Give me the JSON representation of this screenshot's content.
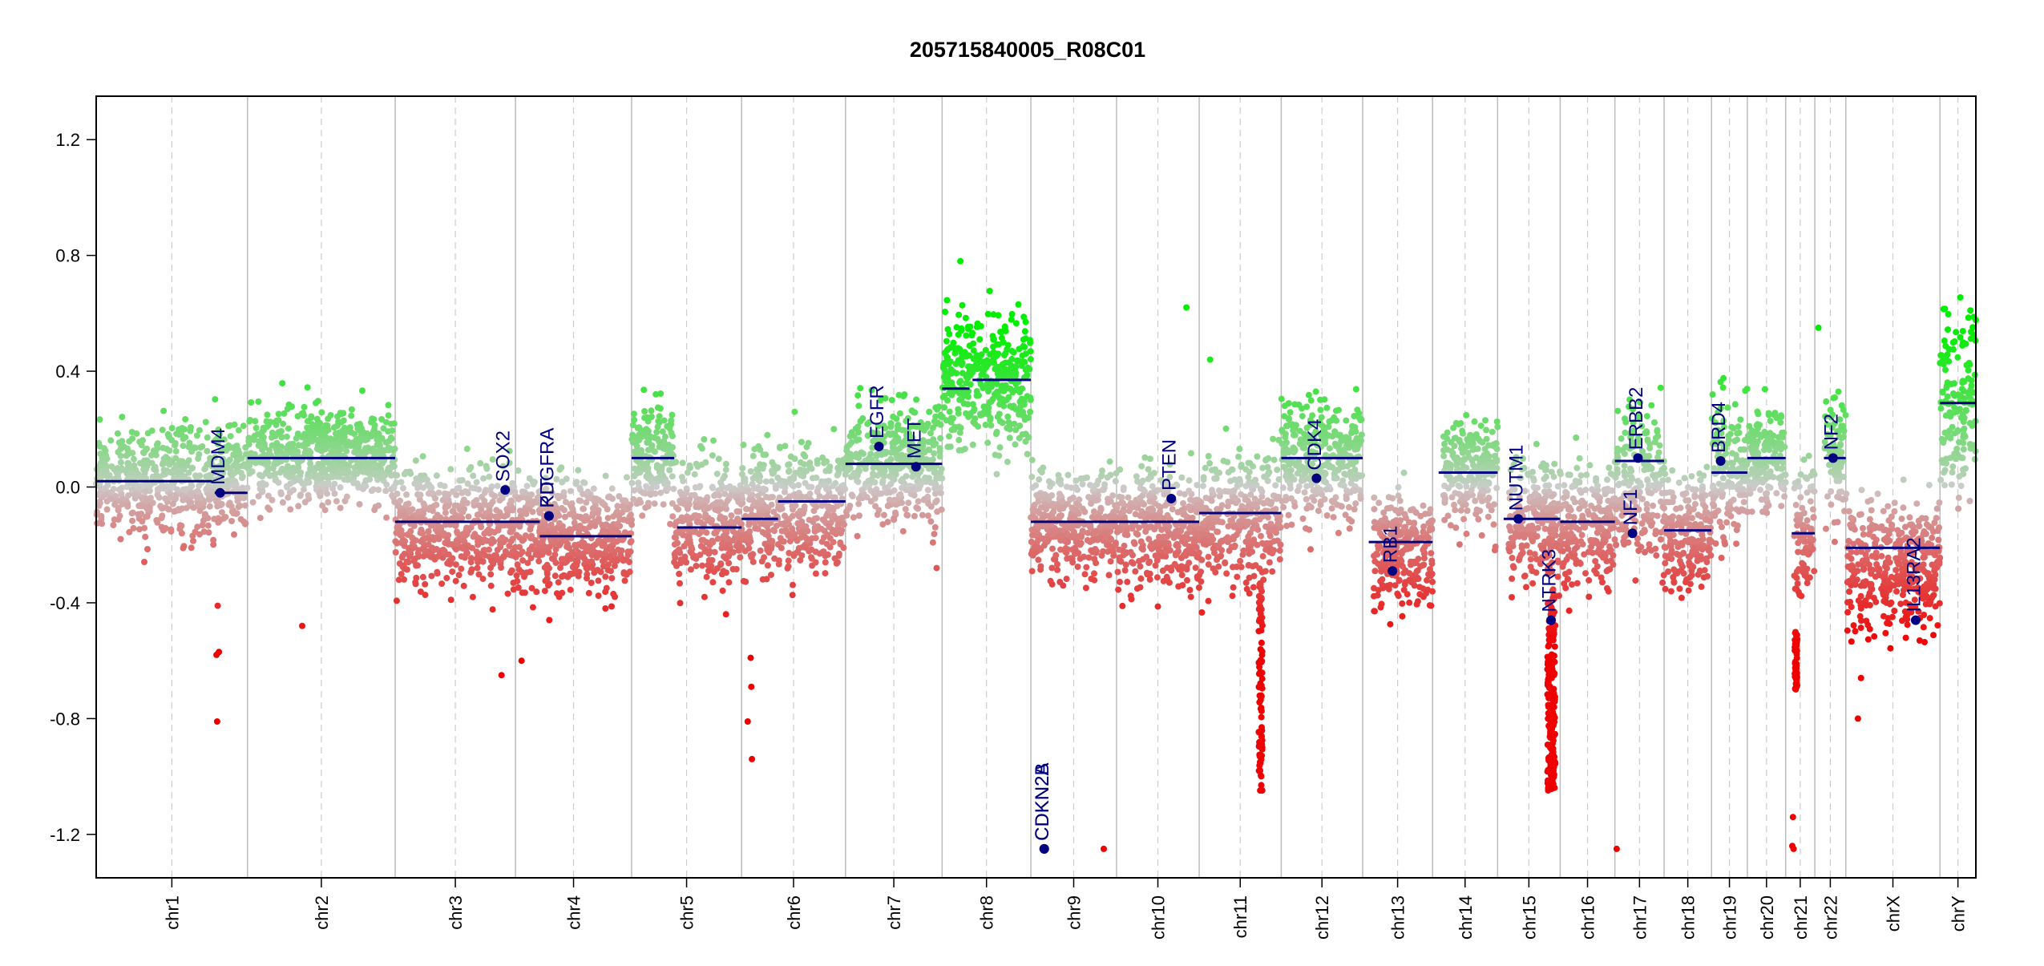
{
  "chart_data": {
    "type": "scatter",
    "title": "205715840005_R08C01",
    "xlabel": "",
    "ylabel": "",
    "ylim": [
      -1.35,
      1.35
    ],
    "y_ticks": [
      1.2,
      0.8,
      0.4,
      0.0,
      -0.4,
      -0.8,
      -1.2
    ],
    "y_tick_labels": [
      "1.2",
      "0.8",
      "0.4",
      "0.0",
      "-0.4",
      "-0.8",
      "-1.2"
    ],
    "grid": false,
    "colors": {
      "gain": "#00ee00",
      "loss": "#ee0000",
      "neutral": "#cccccc",
      "segment": "#000080",
      "gene": "#000080",
      "boundary": "#999999"
    },
    "chromosomes": [
      {
        "name": "chr1",
        "length": 249
      },
      {
        "name": "chr2",
        "length": 243
      },
      {
        "name": "chr3",
        "length": 198
      },
      {
        "name": "chr4",
        "length": 191
      },
      {
        "name": "chr5",
        "length": 181
      },
      {
        "name": "chr6",
        "length": 171
      },
      {
        "name": "chr7",
        "length": 159
      },
      {
        "name": "chr8",
        "length": 146
      },
      {
        "name": "chr9",
        "length": 141
      },
      {
        "name": "chr10",
        "length": 136
      },
      {
        "name": "chr11",
        "length": 135
      },
      {
        "name": "chr12",
        "length": 134
      },
      {
        "name": "chr13",
        "length": 115
      },
      {
        "name": "chr14",
        "length": 107
      },
      {
        "name": "chr15",
        "length": 103
      },
      {
        "name": "chr16",
        "length": 90
      },
      {
        "name": "chr17",
        "length": 81
      },
      {
        "name": "chr18",
        "length": 78
      },
      {
        "name": "chr19",
        "length": 59
      },
      {
        "name": "chr20",
        "length": 63
      },
      {
        "name": "chr21",
        "length": 48
      },
      {
        "name": "chr22",
        "length": 51
      },
      {
        "name": "chrX",
        "length": 155
      },
      {
        "name": "chrY",
        "length": 59
      }
    ],
    "segments": [
      {
        "chr": "chr1",
        "start": 0,
        "end": 190,
        "value": 0.02
      },
      {
        "chr": "chr1",
        "start": 195,
        "end": 249,
        "value": -0.02
      },
      {
        "chr": "chr2",
        "start": 0,
        "end": 243,
        "value": 0.1
      },
      {
        "chr": "chr3",
        "start": 0,
        "end": 198,
        "value": -0.12
      },
      {
        "chr": "chr4",
        "start": 0,
        "end": 40,
        "value": -0.12
      },
      {
        "chr": "chr4",
        "start": 40,
        "end": 191,
        "value": -0.17
      },
      {
        "chr": "chr5",
        "start": 0,
        "end": 70,
        "value": 0.1
      },
      {
        "chr": "chr5",
        "start": 75,
        "end": 181,
        "value": -0.14
      },
      {
        "chr": "chr6",
        "start": 0,
        "end": 60,
        "value": -0.11
      },
      {
        "chr": "chr6",
        "start": 60,
        "end": 171,
        "value": -0.05
      },
      {
        "chr": "chr7",
        "start": 0,
        "end": 159,
        "value": 0.08
      },
      {
        "chr": "chr8",
        "start": 0,
        "end": 45,
        "value": 0.34
      },
      {
        "chr": "chr8",
        "start": 50,
        "end": 146,
        "value": 0.37
      },
      {
        "chr": "chr9",
        "start": 0,
        "end": 141,
        "value": -0.12
      },
      {
        "chr": "chr10",
        "start": 0,
        "end": 136,
        "value": -0.12
      },
      {
        "chr": "chr11",
        "start": 0,
        "end": 135,
        "value": -0.09
      },
      {
        "chr": "chr12",
        "start": 0,
        "end": 134,
        "value": 0.1
      },
      {
        "chr": "chr13",
        "start": 10,
        "end": 115,
        "value": -0.19
      },
      {
        "chr": "chr14",
        "start": 10,
        "end": 107,
        "value": 0.05
      },
      {
        "chr": "chr15",
        "start": 10,
        "end": 103,
        "value": -0.11
      },
      {
        "chr": "chr16",
        "start": 0,
        "end": 90,
        "value": -0.12
      },
      {
        "chr": "chr17",
        "start": 0,
        "end": 81,
        "value": 0.09
      },
      {
        "chr": "chr18",
        "start": 0,
        "end": 78,
        "value": -0.15
      },
      {
        "chr": "chr19",
        "start": 0,
        "end": 59,
        "value": 0.05
      },
      {
        "chr": "chr20",
        "start": 0,
        "end": 63,
        "value": 0.1
      },
      {
        "chr": "chr21",
        "start": 10,
        "end": 48,
        "value": -0.16
      },
      {
        "chr": "chr22",
        "start": 15,
        "end": 51,
        "value": 0.1
      },
      {
        "chr": "chrX",
        "start": 0,
        "end": 155,
        "value": -0.21
      },
      {
        "chr": "chrY",
        "start": 0,
        "end": 59,
        "value": 0.29
      }
    ],
    "genes": [
      {
        "name": "MDM4",
        "chr": "chr1",
        "pos": 204,
        "value": -0.02
      },
      {
        "name": "SOX2",
        "chr": "chr3",
        "pos": 181,
        "value": -0.01
      },
      {
        "name": "PDGFRA",
        "chr": "chr4",
        "pos": 55,
        "value": -0.1
      },
      {
        "name": "KIT",
        "chr": "chr4",
        "pos": 55,
        "value": -0.1
      },
      {
        "name": "EGFR",
        "chr": "chr7",
        "pos": 55,
        "value": 0.14
      },
      {
        "name": "MET",
        "chr": "chr7",
        "pos": 116,
        "value": 0.07
      },
      {
        "name": "CDKN2A",
        "chr": "chr9",
        "pos": 22,
        "value": -1.25
      },
      {
        "name": "CDKN2B",
        "chr": "chr9",
        "pos": 22,
        "value": -1.25
      },
      {
        "name": "PTEN",
        "chr": "chr10",
        "pos": 90,
        "value": -0.04
      },
      {
        "name": "CDK4",
        "chr": "chr12",
        "pos": 58,
        "value": 0.03
      },
      {
        "name": "RB1",
        "chr": "chr13",
        "pos": 49,
        "value": -0.29
      },
      {
        "name": "NUTM1",
        "chr": "chr15",
        "pos": 34,
        "value": -0.11
      },
      {
        "name": "NTRK3",
        "chr": "chr15",
        "pos": 88,
        "value": -0.46
      },
      {
        "name": "NF1",
        "chr": "chr17",
        "pos": 29,
        "value": -0.16
      },
      {
        "name": "ERBB2",
        "chr": "chr17",
        "pos": 38,
        "value": 0.1
      },
      {
        "name": "BRD4",
        "chr": "chr19",
        "pos": 15,
        "value": 0.09
      },
      {
        "name": "NF2",
        "chr": "chr22",
        "pos": 30,
        "value": 0.1
      },
      {
        "name": "IL13RA2",
        "chr": "chrX",
        "pos": 115,
        "value": -0.46
      }
    ],
    "probe_profile": [
      {
        "chr": "chr1",
        "from": 0,
        "to": 249,
        "mean": 0.02,
        "sd": 0.09
      },
      {
        "chr": "chr2",
        "from": 0,
        "to": 243,
        "mean": 0.11,
        "sd": 0.08
      },
      {
        "chr": "chr3",
        "from": 0,
        "to": 198,
        "mean": -0.14,
        "sd": 0.1
      },
      {
        "chr": "chr4",
        "from": 0,
        "to": 191,
        "mean": -0.17,
        "sd": 0.1
      },
      {
        "chr": "chr5",
        "from": 0,
        "to": 70,
        "mean": 0.1,
        "sd": 0.09
      },
      {
        "chr": "chr5",
        "from": 70,
        "to": 181,
        "mean": -0.13,
        "sd": 0.1
      },
      {
        "chr": "chr6",
        "from": 0,
        "to": 171,
        "mean": -0.07,
        "sd": 0.11
      },
      {
        "chr": "chr7",
        "from": 0,
        "to": 159,
        "mean": 0.08,
        "sd": 0.1
      },
      {
        "chr": "chr8",
        "from": 0,
        "to": 146,
        "mean": 0.37,
        "sd": 0.12
      },
      {
        "chr": "chr9",
        "from": 0,
        "to": 141,
        "mean": -0.13,
        "sd": 0.09
      },
      {
        "chr": "chr10",
        "from": 0,
        "to": 136,
        "mean": -0.14,
        "sd": 0.1
      },
      {
        "chr": "chr11",
        "from": 0,
        "to": 135,
        "mean": -0.12,
        "sd": 0.11
      },
      {
        "chr": "chr12",
        "from": 0,
        "to": 134,
        "mean": 0.09,
        "sd": 0.1
      },
      {
        "chr": "chr13",
        "from": 18,
        "to": 115,
        "mean": -0.22,
        "sd": 0.1
      },
      {
        "chr": "chr14",
        "from": 18,
        "to": 107,
        "mean": 0.05,
        "sd": 0.09
      },
      {
        "chr": "chr15",
        "from": 18,
        "to": 103,
        "mean": -0.13,
        "sd": 0.1
      },
      {
        "chr": "chr16",
        "from": 0,
        "to": 90,
        "mean": -0.13,
        "sd": 0.1
      },
      {
        "chr": "chr17",
        "from": 0,
        "to": 81,
        "mean": 0.02,
        "sd": 0.13
      },
      {
        "chr": "chr18",
        "from": 0,
        "to": 78,
        "mean": -0.17,
        "sd": 0.1
      },
      {
        "chr": "chr19",
        "from": 0,
        "to": 59,
        "mean": 0.05,
        "sd": 0.12
      },
      {
        "chr": "chr20",
        "from": 0,
        "to": 63,
        "mean": 0.1,
        "sd": 0.09
      },
      {
        "chr": "chr21",
        "from": 14,
        "to": 48,
        "mean": -0.14,
        "sd": 0.12
      },
      {
        "chr": "chr22",
        "from": 16,
        "to": 51,
        "mean": 0.09,
        "sd": 0.1
      },
      {
        "chr": "chrX",
        "from": 0,
        "to": 155,
        "mean": -0.27,
        "sd": 0.11
      },
      {
        "chr": "chrY",
        "from": 0,
        "to": 59,
        "mean": 0.3,
        "sd": 0.15
      }
    ],
    "outlier_points": [
      {
        "chr": "chr1",
        "pos": 200,
        "value": -0.41
      },
      {
        "chr": "chr1",
        "pos": 202,
        "value": -0.57
      },
      {
        "chr": "chr1",
        "pos": 198,
        "value": -0.58
      },
      {
        "chr": "chr1",
        "pos": 199,
        "value": -0.81
      },
      {
        "chr": "chr2",
        "pos": 90,
        "value": -0.48
      },
      {
        "chr": "chr3",
        "pos": 175,
        "value": -0.65
      },
      {
        "chr": "chr4",
        "pos": 10,
        "value": -0.6
      },
      {
        "chr": "chr6",
        "pos": 15,
        "value": -0.59
      },
      {
        "chr": "chr6",
        "pos": 16,
        "value": -0.69
      },
      {
        "chr": "chr6",
        "pos": 10,
        "value": -0.81
      },
      {
        "chr": "chr6",
        "pos": 17,
        "value": -0.94
      },
      {
        "chr": "chr9",
        "pos": 120,
        "value": -1.25
      },
      {
        "chr": "chr17",
        "pos": 3,
        "value": -1.25
      },
      {
        "chr": "chr21",
        "pos": 12,
        "value": -1.14
      },
      {
        "chr": "chr21",
        "pos": 11,
        "value": -1.24
      },
      {
        "chr": "chr21",
        "pos": 13,
        "value": -1.25
      },
      {
        "chr": "chrX",
        "pos": 20,
        "value": -0.8
      },
      {
        "chr": "chrX",
        "pos": 25,
        "value": -0.66
      },
      {
        "chr": "chr7",
        "pos": 150,
        "value": -0.28
      },
      {
        "chr": "chr10",
        "pos": 115,
        "value": 0.62
      },
      {
        "chr": "chr22",
        "pos": 6,
        "value": 0.55
      },
      {
        "chr": "chrY",
        "pos": 50,
        "value": 0.61
      },
      {
        "chr": "chr11",
        "pos": 18,
        "value": 0.44
      },
      {
        "chr": "chr8",
        "pos": 30,
        "value": 0.78
      }
    ],
    "deletion_clusters": [
      {
        "chr": "chr11",
        "from": 98,
        "to": 104,
        "min": -1.05,
        "max": -0.3
      },
      {
        "chr": "chr15",
        "from": 82,
        "to": 95,
        "min": -1.05,
        "max": -0.35
      },
      {
        "chr": "chr21",
        "from": 15,
        "to": 19,
        "min": -0.7,
        "max": -0.5
      }
    ]
  }
}
